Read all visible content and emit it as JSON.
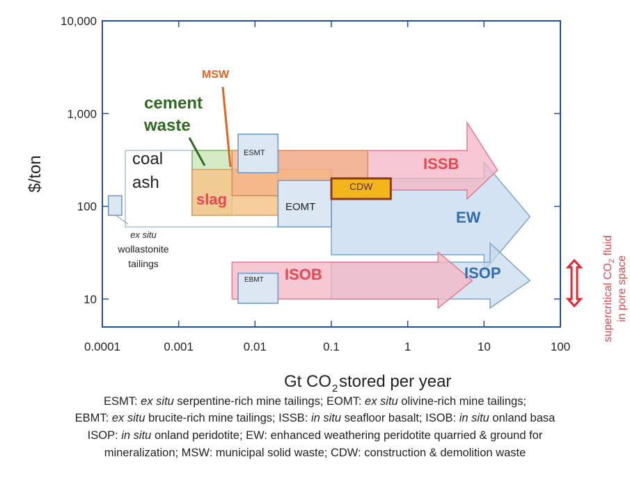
{
  "chart_data": {
    "type": "range-chart",
    "xlabel_main": "Gt CO",
    "xlabel_sub": "2",
    "xlabel_rest": " stored per year",
    "ylabel": "$/ton",
    "xscale": "log",
    "yscale": "log",
    "xlim": [
      0.0001,
      100
    ],
    "ylim": [
      5,
      10000
    ],
    "x_ticks": [
      {
        "value": 0.0001,
        "label": "0.0001"
      },
      {
        "value": 0.001,
        "label": "0.001"
      },
      {
        "value": 0.01,
        "label": "0.01"
      },
      {
        "value": 0.1,
        "label": "0.1"
      },
      {
        "value": 1,
        "label": "1"
      },
      {
        "value": 10,
        "label": "10"
      },
      {
        "value": 100,
        "label": "100"
      }
    ],
    "y_ticks": [
      {
        "value": 10,
        "label": "10"
      },
      {
        "value": 100,
        "label": "100"
      },
      {
        "value": 1000,
        "label": "1,000"
      },
      {
        "value": 10000,
        "label": "10,000"
      }
    ],
    "ranges": [
      {
        "name": "coal-ash",
        "x": [
          0.0002,
          0.02
        ],
        "y": [
          60,
          400
        ],
        "fill": "#ffffff",
        "stroke": "#a8c0d8",
        "opacity": 0.6
      },
      {
        "name": "cement-waste",
        "x": [
          0.0015,
          0.005
        ],
        "y": [
          80,
          400
        ],
        "fill": "#c9e6b8",
        "stroke": "#7fae6a",
        "opacity": 0.8
      },
      {
        "name": "slag",
        "x": [
          0.0015,
          0.1
        ],
        "y": [
          80,
          250
        ],
        "fill": "#f5c58a",
        "stroke": "#d99a5a",
        "opacity": 0.85
      },
      {
        "name": "msw",
        "x": [
          0.005,
          0.3
        ],
        "y": [
          130,
          400
        ],
        "fill": "#f3b085",
        "stroke": "#d98a5a",
        "opacity": 0.75
      },
      {
        "name": "ex-situ-wollastonite",
        "x": [
          0.00012,
          0.00018
        ],
        "y": [
          80,
          130
        ],
        "fill": "#dbe7f3",
        "stroke": "#6d95c0",
        "opacity": 1
      },
      {
        "name": "esmt",
        "x": [
          0.006,
          0.02
        ],
        "y": [
          230,
          600
        ],
        "fill": "#dbe7f3",
        "stroke": "#6d95c0",
        "opacity": 1
      },
      {
        "name": "eomt",
        "x": [
          0.02,
          0.1
        ],
        "y": [
          60,
          190
        ],
        "fill": "#dbe7f3",
        "stroke": "#6d95c0",
        "opacity": 1
      },
      {
        "name": "ebmt",
        "x": [
          0.006,
          0.02
        ],
        "y": [
          9,
          19
        ],
        "fill": "#dbe7f3",
        "stroke": "#6d95c0",
        "opacity": 1
      },
      {
        "name": "cdw",
        "x": [
          0.1,
          0.6
        ],
        "y": [
          120,
          200
        ],
        "fill": "#f2b61c",
        "stroke": "#8a3a1a",
        "opacity": 1
      }
    ],
    "arrows": [
      {
        "name": "issb",
        "x": [
          0.02,
          15
        ],
        "y": [
          150,
          400
        ],
        "head_y": [
          120,
          800
        ],
        "head_start": 6,
        "fill": "#f4b6c4",
        "stroke": "#e07a92",
        "opacity": 0.75
      },
      {
        "name": "ew",
        "x": [
          0.1,
          40
        ],
        "y": [
          30,
          200
        ],
        "head_y": [
          20,
          300
        ],
        "head_start": 10,
        "fill": "#c6d9ec",
        "stroke": "#7fa4c8",
        "opacity": 0.75
      },
      {
        "name": "isob",
        "x": [
          0.005,
          7
        ],
        "y": [
          10,
          25
        ],
        "head_y": [
          8,
          32
        ],
        "head_start": 2.5,
        "fill": "#f4b6c4",
        "stroke": "#e07a92",
        "opacity": 0.75
      },
      {
        "name": "isop",
        "x": [
          0.1,
          40
        ],
        "y": [
          10,
          25
        ],
        "head_y": [
          8,
          40
        ],
        "head_start": 12,
        "fill": "#c6d9ec",
        "stroke": "#7fa4c8",
        "opacity": 0.7
      }
    ],
    "labels": {
      "coal_ash_1": "coal",
      "coal_ash_2": "ash",
      "cement_1": "cement",
      "cement_2": "waste",
      "msw": "MSW",
      "slag": "slag",
      "esmt": "ESMT",
      "eomt": "EOMT",
      "ebmt": "EBMT",
      "cdw": "CDW",
      "issb": "ISSB",
      "ew": "EW",
      "isob": "ISOB",
      "isop": "ISOP",
      "wollastonite_1": "ex situ",
      "wollastonite_2": "wollastonite",
      "wollastonite_3": "tailings",
      "supercritical_1": "supercritical CO",
      "supercritical_sub": "2",
      "supercritical_2": " fluid",
      "supercritical_3": "in pore space"
    },
    "colors": {
      "frame": "#1f4fa0",
      "green": "#2e6b1e",
      "orange": "#e8641e",
      "red_label": "#e8464e",
      "blue_label": "#2f6cb0",
      "dark": "#222222"
    }
  },
  "caption": {
    "line1": [
      {
        "t": "ESMT: ",
        "i": false
      },
      {
        "t": "ex situ",
        "i": true
      },
      {
        "t": " serpentine-rich mine tailings; EOMT: ",
        "i": false
      },
      {
        "t": "ex situ",
        "i": true
      },
      {
        "t": " olivine-rich mine tailings;",
        "i": false
      }
    ],
    "line2": [
      {
        "t": "EBMT: ",
        "i": false
      },
      {
        "t": "ex situ",
        "i": true
      },
      {
        "t": " brucite-rich mine tailings; ISSB: ",
        "i": false
      },
      {
        "t": "in situ",
        "i": true
      },
      {
        "t": " seafloor basalt; ISOB: ",
        "i": false
      },
      {
        "t": "in situ",
        "i": true
      },
      {
        "t": " onland basa",
        "i": false
      }
    ],
    "line3": [
      {
        "t": "ISOP: ",
        "i": false
      },
      {
        "t": "in situ",
        "i": true
      },
      {
        "t": " onland peridotite; EW: enhanced weathering peridotite quarried & ground for",
        "i": false
      }
    ],
    "line4": [
      {
        "t": "mineralization; MSW: municipal solid waste; CDW: construction & demolition waste",
        "i": false
      }
    ]
  }
}
